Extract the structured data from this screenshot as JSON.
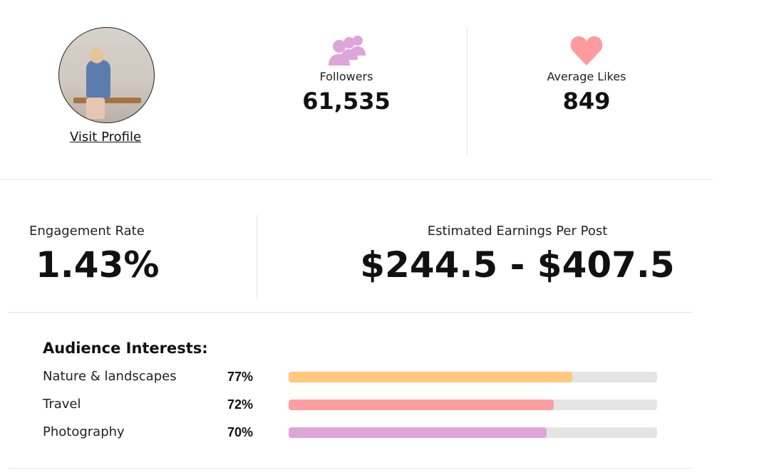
{
  "profile": {
    "visit_label": "Visit Profile"
  },
  "stats": [
    {
      "label": "Followers",
      "value": "61,535",
      "icon": "users-icon",
      "icon_color": "#dea5d9"
    },
    {
      "label": "Average Likes",
      "value": "849",
      "icon": "heart-icon",
      "icon_color": "#ff9a9e"
    }
  ],
  "engagement": {
    "label": "Engagement Rate",
    "value": "1.43%"
  },
  "earnings": {
    "label": "Estimated Earnings Per Post",
    "value": "$244.5 - $407.5"
  },
  "audience": {
    "title": "Audience Interests:",
    "items": [
      {
        "name": "Nature & landscapes",
        "pct_label": "77%",
        "pct": 77,
        "color": "#ffc87c"
      },
      {
        "name": "Travel",
        "pct_label": "72%",
        "pct": 72,
        "color": "#ff9ea2"
      },
      {
        "name": "Photography",
        "pct_label": "70%",
        "pct": 70,
        "color": "#dea5d9"
      }
    ]
  }
}
